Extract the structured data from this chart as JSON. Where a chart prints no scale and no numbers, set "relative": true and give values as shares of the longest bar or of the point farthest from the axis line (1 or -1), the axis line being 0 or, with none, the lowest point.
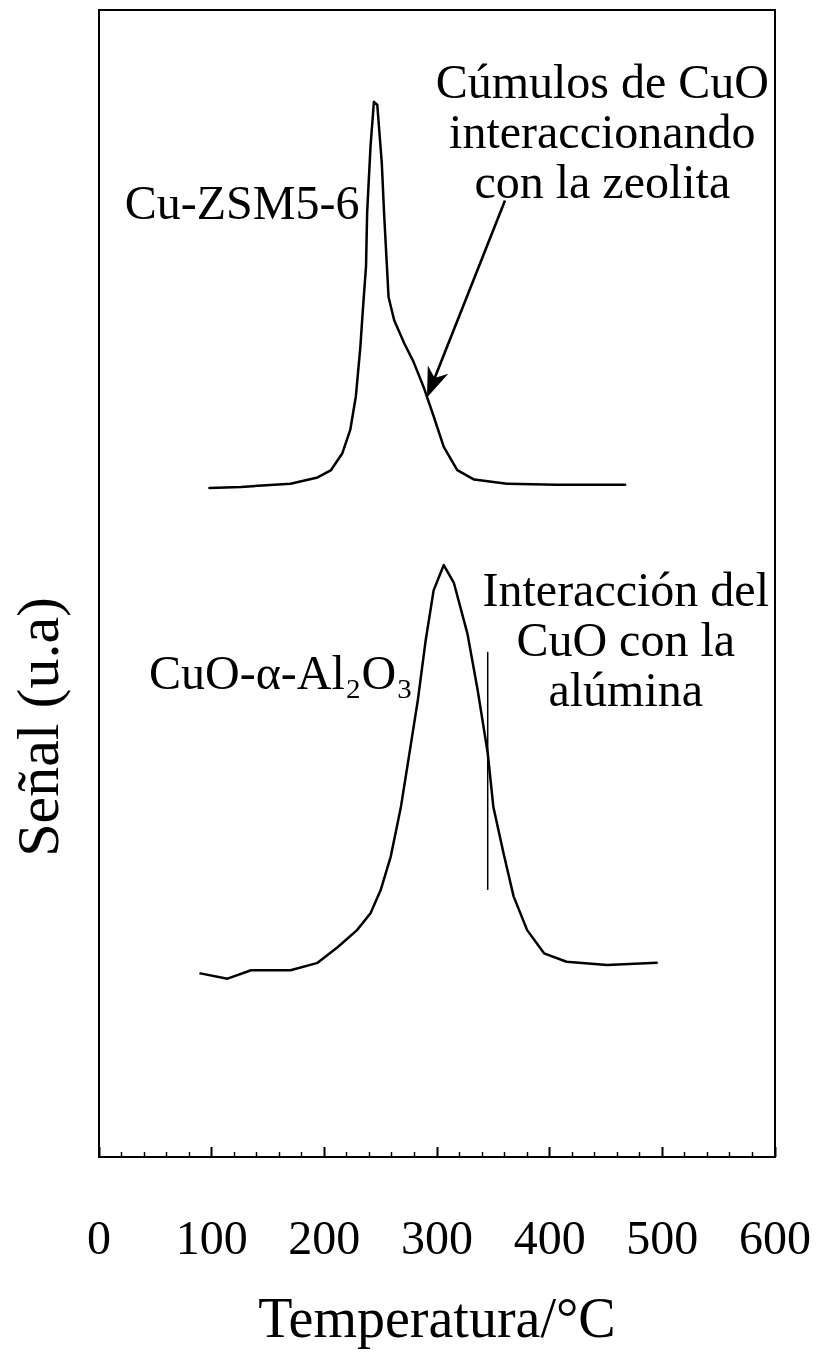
{
  "chart_data": {
    "type": "line",
    "xlabel": "Temperatura/°C",
    "ylabel": "Señal (u.a)",
    "relative": true,
    "xlim": [
      0,
      600
    ],
    "xticks": [
      0,
      {
        "value": 20,
        "label": null
      },
      {
        "value": 40,
        "label": null
      },
      {
        "value": 60,
        "label": null
      },
      {
        "value": 80,
        "label": null
      },
      100,
      {
        "value": 120,
        "label": null
      },
      {
        "value": 140,
        "label": null
      },
      {
        "value": 160,
        "label": null
      },
      {
        "value": 180,
        "label": null
      },
      200,
      {
        "value": 220,
        "label": null
      },
      {
        "value": 240,
        "label": null
      },
      {
        "value": 260,
        "label": null
      },
      {
        "value": 280,
        "label": null
      },
      300,
      {
        "value": 320,
        "label": null
      },
      {
        "value": 340,
        "label": null
      },
      {
        "value": 360,
        "label": null
      },
      {
        "value": 380,
        "label": null
      },
      400,
      {
        "value": 420,
        "label": null
      },
      {
        "value": 440,
        "label": null
      },
      {
        "value": 460,
        "label": null
      },
      {
        "value": 480,
        "label": null
      },
      500,
      {
        "value": 520,
        "label": null
      },
      {
        "value": 540,
        "label": null
      },
      {
        "value": 560,
        "label": null
      },
      {
        "value": 580,
        "label": null
      },
      600
    ],
    "series": [
      {
        "name": "Cu-ZSM5-6",
        "color": "#000000",
        "x": [
          98,
          126,
          170,
          194,
          206,
          216,
          223,
          228,
          232,
          234,
          237,
          238,
          241,
          244,
          247,
          251,
          253,
          257,
          262,
          271,
          279,
          288,
          297,
          306,
          318,
          333,
          362,
          406,
          467
        ],
        "values": [
          0.634,
          0.635,
          0.638,
          0.644,
          0.651,
          0.667,
          0.689,
          0.721,
          0.768,
          0.8,
          0.844,
          0.895,
          0.958,
          1,
          0.997,
          0.942,
          0.895,
          0.815,
          0.793,
          0.771,
          0.754,
          0.73,
          0.702,
          0.673,
          0.651,
          0.642,
          0.638,
          0.637,
          0.637
        ]
      },
      {
        "name": "CuO-α-Al₂O₃",
        "color": "#000000",
        "x": [
          90,
          114,
          135,
          170,
          194,
          212,
          229,
          241,
          250,
          259,
          268,
          275,
          283,
          290,
          297,
          306,
          315,
          327,
          336,
          345,
          350,
          359,
          368,
          380,
          395,
          415,
          451,
          495
        ],
        "values": [
          0.174,
          0.169,
          0.177,
          0.177,
          0.184,
          0.199,
          0.215,
          0.231,
          0.253,
          0.285,
          0.332,
          0.379,
          0.433,
          0.49,
          0.537,
          0.561,
          0.544,
          0.496,
          0.443,
          0.383,
          0.332,
          0.288,
          0.247,
          0.215,
          0.193,
          0.185,
          0.182,
          0.184
        ]
      }
    ],
    "annotations": [
      "Cúmulos de CuO interaccionando con la zeolita",
      {
        "text": "Interacción del CuO con la alúmina",
        "x": 345,
        "y": 0.383
      }
    ]
  }
}
